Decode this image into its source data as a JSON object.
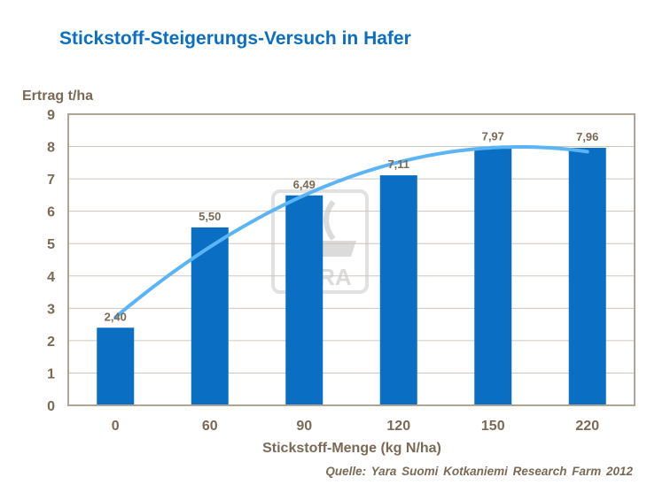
{
  "title": "Stickstoff-Steigerungs-Versuch in Hafer",
  "source": "Quelle: Yara Suomi Kotkaniemi Research Farm 2012",
  "watermark": "YARA",
  "chart_data": {
    "type": "bar",
    "title": "Stickstoff-Steigerungs-Versuch in Hafer",
    "xlabel": "Stickstoff-Menge (kg N/ha)",
    "ylabel": "Ertrag t/ha",
    "categories": [
      "0",
      "60",
      "90",
      "120",
      "150",
      "220"
    ],
    "values": [
      2.4,
      5.5,
      6.49,
      7.11,
      7.97,
      7.96
    ],
    "data_labels": [
      "2,40",
      "5,50",
      "6,49",
      "7,11",
      "7,97",
      "7,96"
    ],
    "ylim": [
      0,
      9
    ],
    "yticks": [
      "0",
      "1",
      "2",
      "3",
      "4",
      "5",
      "6",
      "7",
      "8",
      "9"
    ],
    "grid": true,
    "trendline": "polynomial order 2",
    "colors": {
      "bar": "#0a6fc2",
      "trendline": "#5bb4f5",
      "text": "#7a6a55",
      "grid": "#cfc6bb",
      "frame": "#b0a595"
    }
  }
}
